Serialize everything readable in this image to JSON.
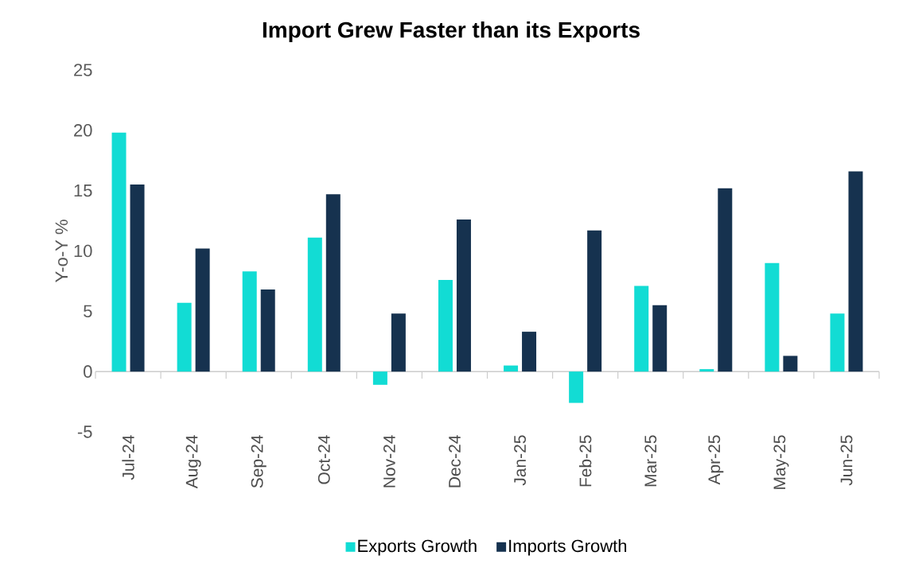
{
  "chart_data": {
    "type": "bar",
    "title": "Import Grew Faster than its Exports",
    "ylabel": "Y-o-Y %",
    "categories": [
      "Jul-24",
      "Aug-24",
      "Sep-24",
      "Oct-24",
      "Nov-24",
      "Dec-24",
      "Jan-25",
      "Feb-25",
      "Mar-25",
      "Apr-25",
      "May-25",
      "Jun-25"
    ],
    "series": [
      {
        "name": "Exports Growth",
        "color": "#12dcd4",
        "values": [
          19.8,
          5.7,
          8.3,
          11.1,
          -1.1,
          7.6,
          0.5,
          -2.6,
          7.1,
          0.2,
          9.0,
          4.8
        ]
      },
      {
        "name": "Imports Growth",
        "color": "#16324f",
        "values": [
          15.5,
          10.2,
          6.8,
          14.7,
          4.8,
          12.6,
          3.3,
          11.7,
          5.5,
          15.2,
          1.3,
          16.6
        ]
      }
    ],
    "ylim": [
      -5,
      25
    ],
    "yticks": [
      -5,
      0,
      5,
      10,
      15,
      20,
      25
    ],
    "legend": "bottom"
  }
}
